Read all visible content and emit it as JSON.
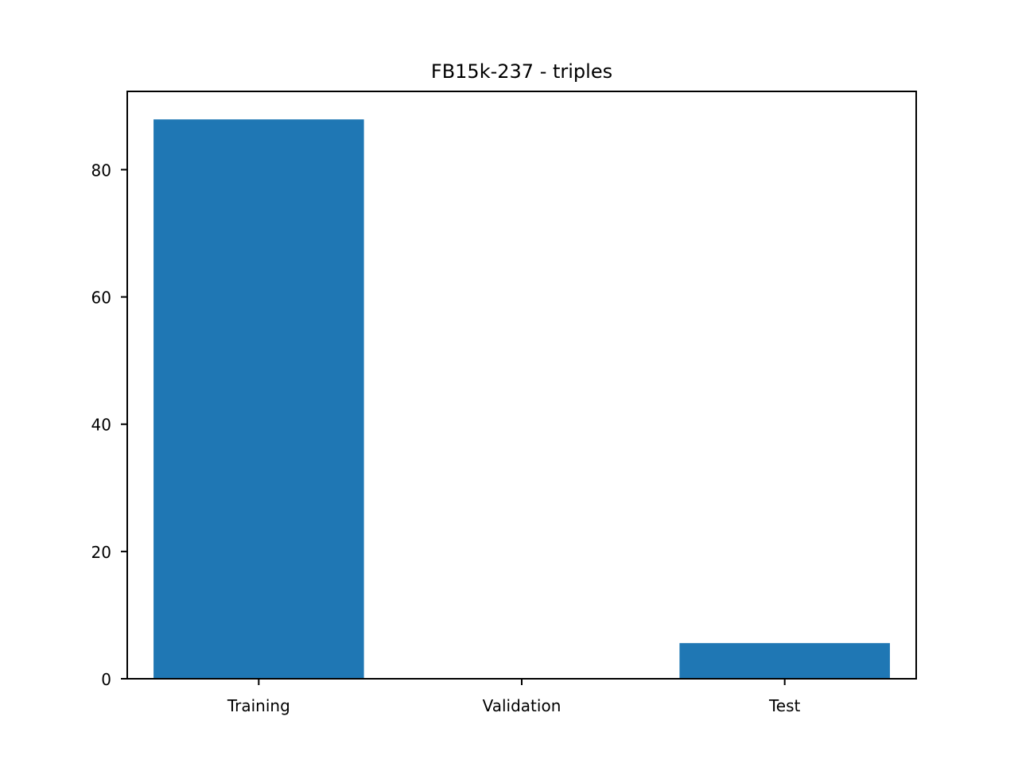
{
  "chart_data": {
    "type": "bar",
    "title": "FB15k-237 - triples",
    "xlabel": "",
    "ylabel": "",
    "categories": [
      "Training",
      "Validation",
      "Test"
    ],
    "values": [
      87.9,
      0,
      5.6
    ],
    "ylim": [
      0,
      92.3
    ],
    "yticks": [
      0,
      20,
      40,
      60,
      80
    ],
    "bar_color": "#1f77b4",
    "grid": false,
    "legend": "none"
  }
}
